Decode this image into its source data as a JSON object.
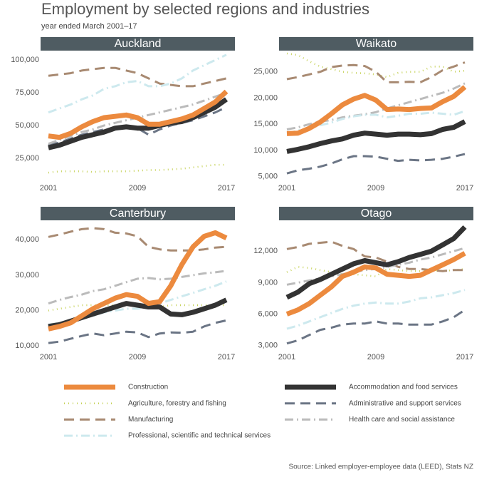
{
  "header": {
    "title": "Employment by selected regions and industries",
    "subtitle": "year ended March 2001–17"
  },
  "source": "Source: Linked employer-employee data (LEED), Stats NZ",
  "chart_data": [
    {
      "type": "line",
      "title": "Auckland",
      "x": [
        2001,
        2002,
        2003,
        2004,
        2005,
        2006,
        2007,
        2008,
        2009,
        2010,
        2011,
        2012,
        2013,
        2014,
        2015,
        2016,
        2017
      ],
      "xlim": [
        2001,
        2017
      ],
      "xticks": [
        2001,
        2009,
        2017
      ],
      "ylim": [
        7000,
        105000
      ],
      "yticks": [
        {
          "value": 25000,
          "label": "25,000"
        },
        {
          "value": 50000,
          "label": "50,000"
        },
        {
          "value": 75000,
          "label": "75,000"
        },
        {
          "value": 100000,
          "label": "100,000"
        }
      ],
      "series": [
        {
          "name": "Construction",
          "color": "#ec8a3e",
          "line_style": "thick",
          "values": [
            42000,
            41000,
            44000,
            49000,
            53000,
            56000,
            57000,
            58000,
            56000,
            51000,
            51000,
            53000,
            55000,
            58000,
            63000,
            68000,
            76000
          ]
        },
        {
          "name": "Accommodation and food services",
          "color": "#333333",
          "line_style": "thick",
          "values": [
            33000,
            35000,
            38000,
            41000,
            43000,
            45000,
            48000,
            49000,
            48000,
            48000,
            50000,
            52000,
            53000,
            56000,
            60000,
            64000,
            70000
          ]
        },
        {
          "name": "Agriculture, forestry and fishing",
          "color": "#c7d35c",
          "line_style": "dotted",
          "values": [
            14000,
            15000,
            15000,
            15000,
            14500,
            15000,
            15000,
            15000,
            15500,
            16000,
            16000,
            16500,
            17000,
            18000,
            19000,
            20000,
            20000
          ]
        },
        {
          "name": "Administrative and support services",
          "color": "#6b7585",
          "line_style": "dashed",
          "values": [
            35000,
            37000,
            40000,
            43000,
            45000,
            47000,
            48000,
            49000,
            48000,
            43000,
            47000,
            50000,
            52000,
            54000,
            57000,
            60000,
            64000
          ]
        },
        {
          "name": "Manufacturing",
          "color": "#a88a72",
          "line_style": "dashed",
          "values": [
            88000,
            89000,
            90000,
            92000,
            93000,
            94000,
            94000,
            92000,
            90000,
            86000,
            82000,
            81000,
            80000,
            80000,
            82000,
            84000,
            86000
          ]
        },
        {
          "name": "Health care and social assistance",
          "color": "#bbbbbb",
          "line_style": "dash-dot",
          "values": [
            36000,
            39000,
            42000,
            45000,
            47000,
            50000,
            52000,
            54000,
            56000,
            58000,
            60000,
            62000,
            64000,
            66000,
            69000,
            72000,
            75000
          ]
        },
        {
          "name": "Professional, scientific and technical services",
          "color": "#cde9ee",
          "line_style": "dash-dot",
          "values": [
            60000,
            63000,
            66000,
            70000,
            73000,
            78000,
            80000,
            83000,
            84000,
            80000,
            80000,
            82000,
            86000,
            92000,
            96000,
            100000,
            104000
          ]
        }
      ]
    },
    {
      "type": "line",
      "title": "Waikato",
      "x": [
        2001,
        2002,
        2003,
        2004,
        2005,
        2006,
        2007,
        2008,
        2009,
        2010,
        2011,
        2012,
        2013,
        2014,
        2015,
        2016,
        2017
      ],
      "xlim": [
        2001,
        2017
      ],
      "xticks": [
        2001,
        2009,
        2017
      ],
      "ylim": [
        4000,
        28500
      ],
      "yticks": [
        {
          "value": 5000,
          "label": "5,000"
        },
        {
          "value": 10000,
          "label": "10,000"
        },
        {
          "value": 15000,
          "label": "15,000"
        },
        {
          "value": 20000,
          "label": "20,000"
        },
        {
          "value": 25000,
          "label": "25,000"
        }
      ],
      "series": [
        {
          "name": "Construction",
          "color": "#ec8a3e",
          "line_style": "thick",
          "values": [
            13200,
            13300,
            14200,
            15400,
            17000,
            18700,
            19800,
            20500,
            19600,
            17800,
            17900,
            17800,
            18000,
            18100,
            19300,
            20300,
            22100
          ]
        },
        {
          "name": "Accommodation and food services",
          "color": "#333333",
          "line_style": "thick",
          "values": [
            9800,
            10200,
            10700,
            11300,
            11800,
            12200,
            12900,
            13300,
            13100,
            12900,
            13100,
            13100,
            13000,
            13200,
            14000,
            14400,
            15500
          ]
        },
        {
          "name": "Agriculture, forestry and fishing",
          "color": "#c7d35c",
          "line_style": "dotted",
          "values": [
            28500,
            28200,
            27000,
            26000,
            25500,
            25000,
            24800,
            24700,
            24500,
            24000,
            24800,
            25000,
            25000,
            26000,
            26000,
            25000,
            25200
          ]
        },
        {
          "name": "Administrative and support services",
          "color": "#6b7585",
          "line_style": "dashed",
          "values": [
            5600,
            6200,
            6500,
            6900,
            7500,
            8300,
            8900,
            8900,
            8800,
            8400,
            8000,
            8200,
            8100,
            8200,
            8400,
            8800,
            9300
          ]
        },
        {
          "name": "Manufacturing",
          "color": "#a88a72",
          "line_style": "dashed",
          "values": [
            23600,
            24000,
            24500,
            25000,
            25900,
            26200,
            26300,
            26100,
            25000,
            23000,
            23000,
            23100,
            23000,
            24000,
            25300,
            26000,
            26800
          ]
        },
        {
          "name": "Health care and social assistance",
          "color": "#bbbbbb",
          "line_style": "dash-dot",
          "values": [
            14000,
            14400,
            15000,
            15500,
            15800,
            16300,
            16600,
            16900,
            17300,
            18000,
            18600,
            19200,
            19800,
            20400,
            21000,
            21800,
            22800
          ]
        },
        {
          "name": "Professional, scientific and technical services",
          "color": "#cde9ee",
          "line_style": "dash-dot",
          "values": [
            13200,
            13800,
            14300,
            14800,
            15300,
            16000,
            16500,
            16800,
            16800,
            16300,
            16600,
            17000,
            17000,
            17200,
            17000,
            16800,
            17500
          ]
        }
      ]
    },
    {
      "type": "line",
      "title": "Canterbury",
      "x": [
        2001,
        2002,
        2003,
        2004,
        2005,
        2006,
        2007,
        2008,
        2009,
        2010,
        2011,
        2012,
        2013,
        2014,
        2015,
        2016,
        2017
      ],
      "xlim": [
        2001,
        2017
      ],
      "xticks": [
        2001,
        2009,
        2017
      ],
      "ylim": [
        8600,
        44500
      ],
      "yticks": [
        {
          "value": 10000,
          "label": "10,000"
        },
        {
          "value": 20000,
          "label": "20,000"
        },
        {
          "value": 30000,
          "label": "30,000"
        },
        {
          "value": 40000,
          "label": "40,000"
        }
      ],
      "series": [
        {
          "name": "Construction",
          "color": "#ec8a3e",
          "line_style": "thick",
          "values": [
            14800,
            15500,
            16500,
            18500,
            20500,
            22000,
            23500,
            24500,
            24000,
            22000,
            22500,
            27000,
            33000,
            38000,
            41000,
            42000,
            40500
          ]
        },
        {
          "name": "Accommodation and food services",
          "color": "#333333",
          "line_style": "thick",
          "values": [
            15500,
            16000,
            17000,
            18000,
            19000,
            20000,
            21000,
            22000,
            21500,
            21000,
            21000,
            19000,
            18800,
            19500,
            20500,
            21500,
            23000
          ]
        },
        {
          "name": "Agriculture, forestry and fishing",
          "color": "#c7d35c",
          "line_style": "dotted",
          "values": [
            20000,
            20500,
            21000,
            21500,
            21500,
            21500,
            21500,
            21500,
            21500,
            21000,
            21000,
            21500,
            21500,
            21500,
            21500,
            21500,
            21500
          ]
        },
        {
          "name": "Administrative and support services",
          "color": "#6b7585",
          "line_style": "dashed",
          "values": [
            10800,
            11200,
            12000,
            12800,
            13500,
            13000,
            13500,
            14000,
            13800,
            12500,
            13500,
            13800,
            13700,
            14000,
            15500,
            16500,
            17200
          ]
        },
        {
          "name": "Manufacturing",
          "color": "#a88a72",
          "line_style": "dashed",
          "values": [
            40800,
            41500,
            42300,
            43000,
            43300,
            43000,
            42000,
            41800,
            41000,
            38000,
            37300,
            37000,
            37000,
            37000,
            37300,
            37800,
            38000
          ]
        },
        {
          "name": "Health care and social assistance",
          "color": "#bbbbbb",
          "line_style": "dash-dot",
          "values": [
            22000,
            23000,
            23800,
            24500,
            25500,
            26000,
            27000,
            28000,
            29000,
            29200,
            28800,
            29000,
            29500,
            30000,
            30500,
            30800,
            31200
          ]
        },
        {
          "name": "Professional, scientific and technical services",
          "color": "#cde9ee",
          "line_style": "dash-dot",
          "values": [
            16000,
            16500,
            17000,
            17800,
            18500,
            19500,
            20000,
            20500,
            20500,
            21000,
            22000,
            23000,
            24000,
            25000,
            26000,
            27000,
            28200
          ]
        }
      ]
    },
    {
      "type": "line",
      "title": "Otago",
      "x": [
        2001,
        2002,
        2003,
        2004,
        2005,
        2006,
        2007,
        2008,
        2009,
        2010,
        2011,
        2012,
        2013,
        2014,
        2015,
        2016,
        2017
      ],
      "xlim": [
        2001,
        2017
      ],
      "xticks": [
        2001,
        2009,
        2017
      ],
      "ylim": [
        2500,
        14600
      ],
      "yticks": [
        {
          "value": 3000,
          "label": "3,000"
        },
        {
          "value": 6000,
          "label": "6,000"
        },
        {
          "value": 9000,
          "label": "9,000"
        },
        {
          "value": 12000,
          "label": "12,000"
        }
      ],
      "series": [
        {
          "name": "Construction",
          "color": "#ec8a3e",
          "line_style": "thick",
          "values": [
            6000,
            6400,
            7000,
            7800,
            8600,
            9600,
            10000,
            10500,
            10400,
            9800,
            9700,
            9600,
            9700,
            10200,
            10700,
            11200,
            11800
          ]
        },
        {
          "name": "Accommodation and food services",
          "color": "#333333",
          "line_style": "thick",
          "values": [
            7600,
            8100,
            8900,
            9300,
            9800,
            10300,
            10800,
            11100,
            10900,
            10700,
            11000,
            11400,
            11700,
            12000,
            12600,
            13200,
            14300
          ]
        },
        {
          "name": "Agriculture, forestry and fishing",
          "color": "#c7d35c",
          "line_style": "dotted",
          "values": [
            10000,
            10500,
            10400,
            10200,
            10000,
            9800,
            9800,
            9700,
            9600,
            10300,
            10200,
            10100,
            10100,
            10200,
            10100,
            10200,
            10300
          ]
        },
        {
          "name": "Administrative and support services",
          "color": "#6b7585",
          "line_style": "dashed",
          "values": [
            3200,
            3500,
            4000,
            4500,
            4700,
            5000,
            5100,
            5100,
            5300,
            5100,
            5100,
            5000,
            5000,
            5000,
            5300,
            5700,
            6400
          ]
        },
        {
          "name": "Manufacturing",
          "color": "#a88a72",
          "line_style": "dashed",
          "values": [
            12200,
            12400,
            12700,
            12800,
            12900,
            12500,
            12200,
            11500,
            11400,
            11000,
            10500,
            10300,
            10300,
            10200,
            10100,
            10200,
            10200
          ]
        },
        {
          "name": "Health care and social assistance",
          "color": "#bbbbbb",
          "line_style": "dash-dot",
          "values": [
            8800,
            9000,
            9200,
            9400,
            9600,
            9800,
            10000,
            10200,
            10300,
            10500,
            10700,
            10900,
            11200,
            11400,
            11700,
            12000,
            12300
          ]
        },
        {
          "name": "Professional, scientific and technical services",
          "color": "#cde9ee",
          "line_style": "dash-dot",
          "values": [
            4600,
            4900,
            5300,
            5700,
            6100,
            6500,
            6800,
            7000,
            7100,
            7000,
            7000,
            7200,
            7500,
            7600,
            7800,
            8000,
            8300
          ]
        }
      ]
    }
  ]
}
